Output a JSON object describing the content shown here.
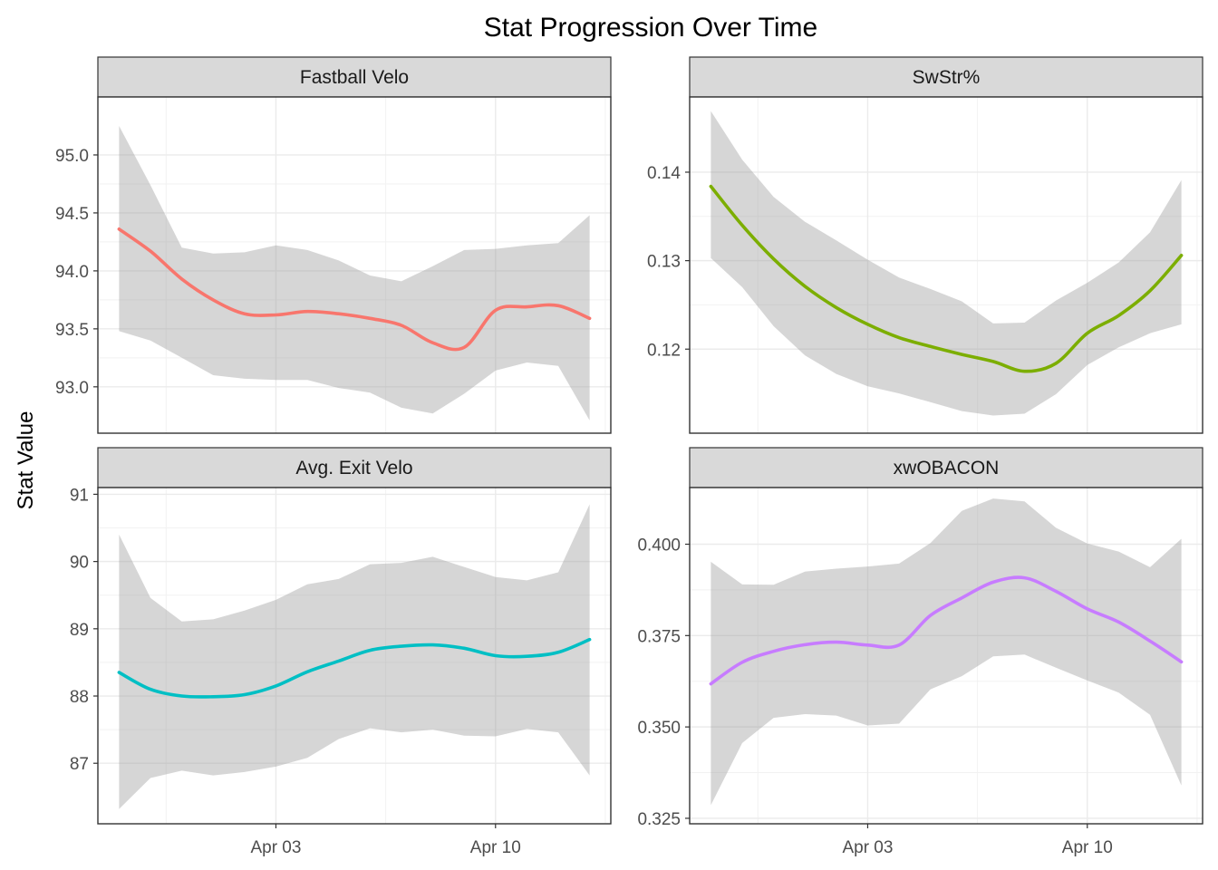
{
  "chart_data": {
    "type": "line",
    "title": "Stat Progression Over Time",
    "ylabel": "Stat Value",
    "xlabel": "",
    "x_ticks": [
      "Apr 03",
      "Apr 10"
    ],
    "x_range": [
      "2023-03-29",
      "2023-04-13"
    ],
    "grid": true,
    "legend": "none",
    "panels": [
      {
        "name": "Fastball Velo",
        "color": "#F8766D",
        "ylim": [
          92.6,
          95.5
        ],
        "y_ticks": [
          "93.0",
          "93.5",
          "94.0",
          "94.5",
          "95.0"
        ],
        "x": [
          "2023-03-29",
          "2023-03-30",
          "2023-03-31",
          "2023-04-01",
          "2023-04-02",
          "2023-04-03",
          "2023-04-04",
          "2023-04-05",
          "2023-04-06",
          "2023-04-07",
          "2023-04-08",
          "2023-04-09",
          "2023-04-10",
          "2023-04-11",
          "2023-04-12",
          "2023-04-13"
        ],
        "values": [
          94.36,
          94.17,
          93.93,
          93.75,
          93.63,
          93.62,
          93.65,
          93.63,
          93.59,
          93.53,
          93.38,
          93.34,
          93.66,
          93.69,
          93.7,
          93.59
        ],
        "lower": [
          93.48,
          93.4,
          93.25,
          93.1,
          93.07,
          93.06,
          93.06,
          92.99,
          92.95,
          92.82,
          92.77,
          92.94,
          93.14,
          93.21,
          93.18,
          92.71
        ],
        "upper": [
          95.25,
          94.74,
          94.2,
          94.15,
          94.16,
          94.22,
          94.18,
          94.09,
          93.96,
          93.91,
          94.04,
          94.18,
          94.19,
          94.22,
          94.24,
          94.48
        ]
      },
      {
        "name": "SwStr%",
        "color": "#7CAE00",
        "ylim": [
          0.1105,
          0.1485
        ],
        "y_ticks": [
          "0.12",
          "0.13",
          "0.14"
        ],
        "x": [
          "2023-03-29",
          "2023-03-30",
          "2023-03-31",
          "2023-04-01",
          "2023-04-02",
          "2023-04-03",
          "2023-04-04",
          "2023-04-05",
          "2023-04-06",
          "2023-04-07",
          "2023-04-08",
          "2023-04-09",
          "2023-04-10",
          "2023-04-11",
          "2023-04-12",
          "2023-04-13"
        ],
        "values": [
          0.1384,
          0.134,
          0.1302,
          0.1271,
          0.1247,
          0.1228,
          0.1213,
          0.1203,
          0.1194,
          0.1186,
          0.1175,
          0.1184,
          0.1218,
          0.1238,
          0.1266,
          0.1306
        ],
        "lower": [
          0.1303,
          0.127,
          0.1226,
          0.1193,
          0.1172,
          0.1158,
          0.115,
          0.114,
          0.113,
          0.1125,
          0.1127,
          0.1149,
          0.1182,
          0.1202,
          0.1218,
          0.1228
        ],
        "upper": [
          0.1469,
          0.1414,
          0.1372,
          0.1344,
          0.1323,
          0.1301,
          0.1281,
          0.1268,
          0.1254,
          0.1229,
          0.123,
          0.1255,
          0.1275,
          0.1298,
          0.1332,
          0.1391
        ]
      },
      {
        "name": "Avg. Exit Velo",
        "color": "#00BFC4",
        "ylim": [
          86.1,
          91.1
        ],
        "y_ticks": [
          "87",
          "88",
          "89",
          "90",
          "91"
        ],
        "x": [
          "2023-03-29",
          "2023-03-30",
          "2023-03-31",
          "2023-04-01",
          "2023-04-02",
          "2023-04-03",
          "2023-04-04",
          "2023-04-05",
          "2023-04-06",
          "2023-04-07",
          "2023-04-08",
          "2023-04-09",
          "2023-04-10",
          "2023-04-11",
          "2023-04-12",
          "2023-04-13"
        ],
        "values": [
          88.35,
          88.1,
          88.0,
          87.99,
          88.02,
          88.15,
          88.36,
          88.52,
          88.68,
          88.74,
          88.76,
          88.71,
          88.6,
          88.59,
          88.65,
          88.84
        ],
        "lower": [
          86.32,
          86.78,
          86.89,
          86.82,
          86.87,
          86.95,
          87.08,
          87.36,
          87.52,
          87.46,
          87.5,
          87.41,
          87.4,
          87.51,
          87.46,
          86.82
        ],
        "upper": [
          90.4,
          89.46,
          89.11,
          89.14,
          89.27,
          89.43,
          89.66,
          89.74,
          89.96,
          89.98,
          90.07,
          89.92,
          89.77,
          89.72,
          89.84,
          90.85
        ]
      },
      {
        "name": "xwOBACON",
        "color": "#C77CFF",
        "ylim": [
          0.3235,
          0.4155
        ],
        "y_ticks": [
          "0.325",
          "0.350",
          "0.375",
          "0.400"
        ],
        "x": [
          "2023-03-29",
          "2023-03-30",
          "2023-03-31",
          "2023-04-01",
          "2023-04-02",
          "2023-04-03",
          "2023-04-04",
          "2023-04-05",
          "2023-04-06",
          "2023-04-07",
          "2023-04-08",
          "2023-04-09",
          "2023-04-10",
          "2023-04-11",
          "2023-04-12",
          "2023-04-13"
        ],
        "values": [
          0.3618,
          0.3677,
          0.3707,
          0.3725,
          0.3732,
          0.3724,
          0.3724,
          0.3805,
          0.3853,
          0.3896,
          0.3908,
          0.3871,
          0.3823,
          0.3787,
          0.3735,
          0.3678
        ],
        "lower": [
          0.3286,
          0.3456,
          0.3525,
          0.3535,
          0.3531,
          0.3504,
          0.3509,
          0.3603,
          0.3639,
          0.3693,
          0.3698,
          0.3662,
          0.3627,
          0.3594,
          0.3533,
          0.334
        ],
        "upper": [
          0.3952,
          0.389,
          0.3889,
          0.3925,
          0.3933,
          0.3939,
          0.3947,
          0.4003,
          0.4091,
          0.4125,
          0.4117,
          0.4045,
          0.4002,
          0.398,
          0.3937,
          0.4015
        ]
      }
    ]
  }
}
